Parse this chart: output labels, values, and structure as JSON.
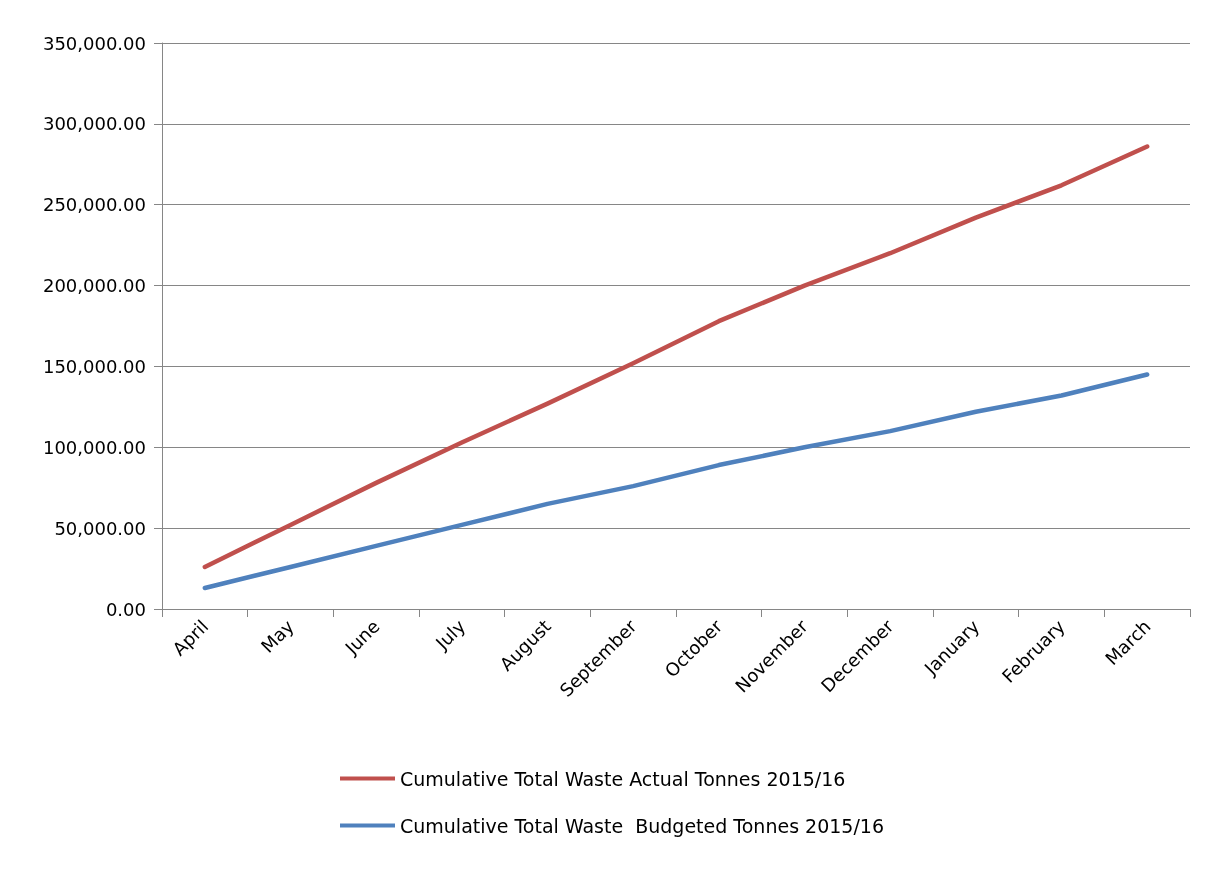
{
  "chart_data": {
    "type": "line",
    "categories": [
      "April",
      "May",
      "June",
      "July",
      "August",
      "September",
      "October",
      "November",
      "December",
      "January",
      "February",
      "March"
    ],
    "series": [
      {
        "name": "Cumulative Total Waste Actual Tonnes 2015/16",
        "color": "#c0504d",
        "values": [
          26000,
          52000,
          78000,
          103000,
          127000,
          152000,
          178000,
          200000,
          220000,
          242000,
          262000,
          286000
        ]
      },
      {
        "name": "Cumulative Total Waste  Budgeted Tonnes 2015/16",
        "color": "#4f81bd",
        "values": [
          13000,
          26000,
          39000,
          52000,
          65000,
          76000,
          89000,
          100000,
          110000,
          122000,
          132000,
          145000
        ]
      }
    ],
    "ylim": [
      0,
      350000
    ],
    "yticks": [
      {
        "value": 0,
        "label": "0.00"
      },
      {
        "value": 50000,
        "label": "50,000.00"
      },
      {
        "value": 100000,
        "label": "100,000.00"
      },
      {
        "value": 150000,
        "label": "150,000.00"
      },
      {
        "value": 200000,
        "label": "200,000.00"
      },
      {
        "value": 250000,
        "label": "250,000.00"
      },
      {
        "value": 300000,
        "label": "300,000.00"
      },
      {
        "value": 350000,
        "label": "350,000.00"
      }
    ],
    "grid": "y",
    "legend": "bottom",
    "marker": "none",
    "line_style": "solid"
  }
}
